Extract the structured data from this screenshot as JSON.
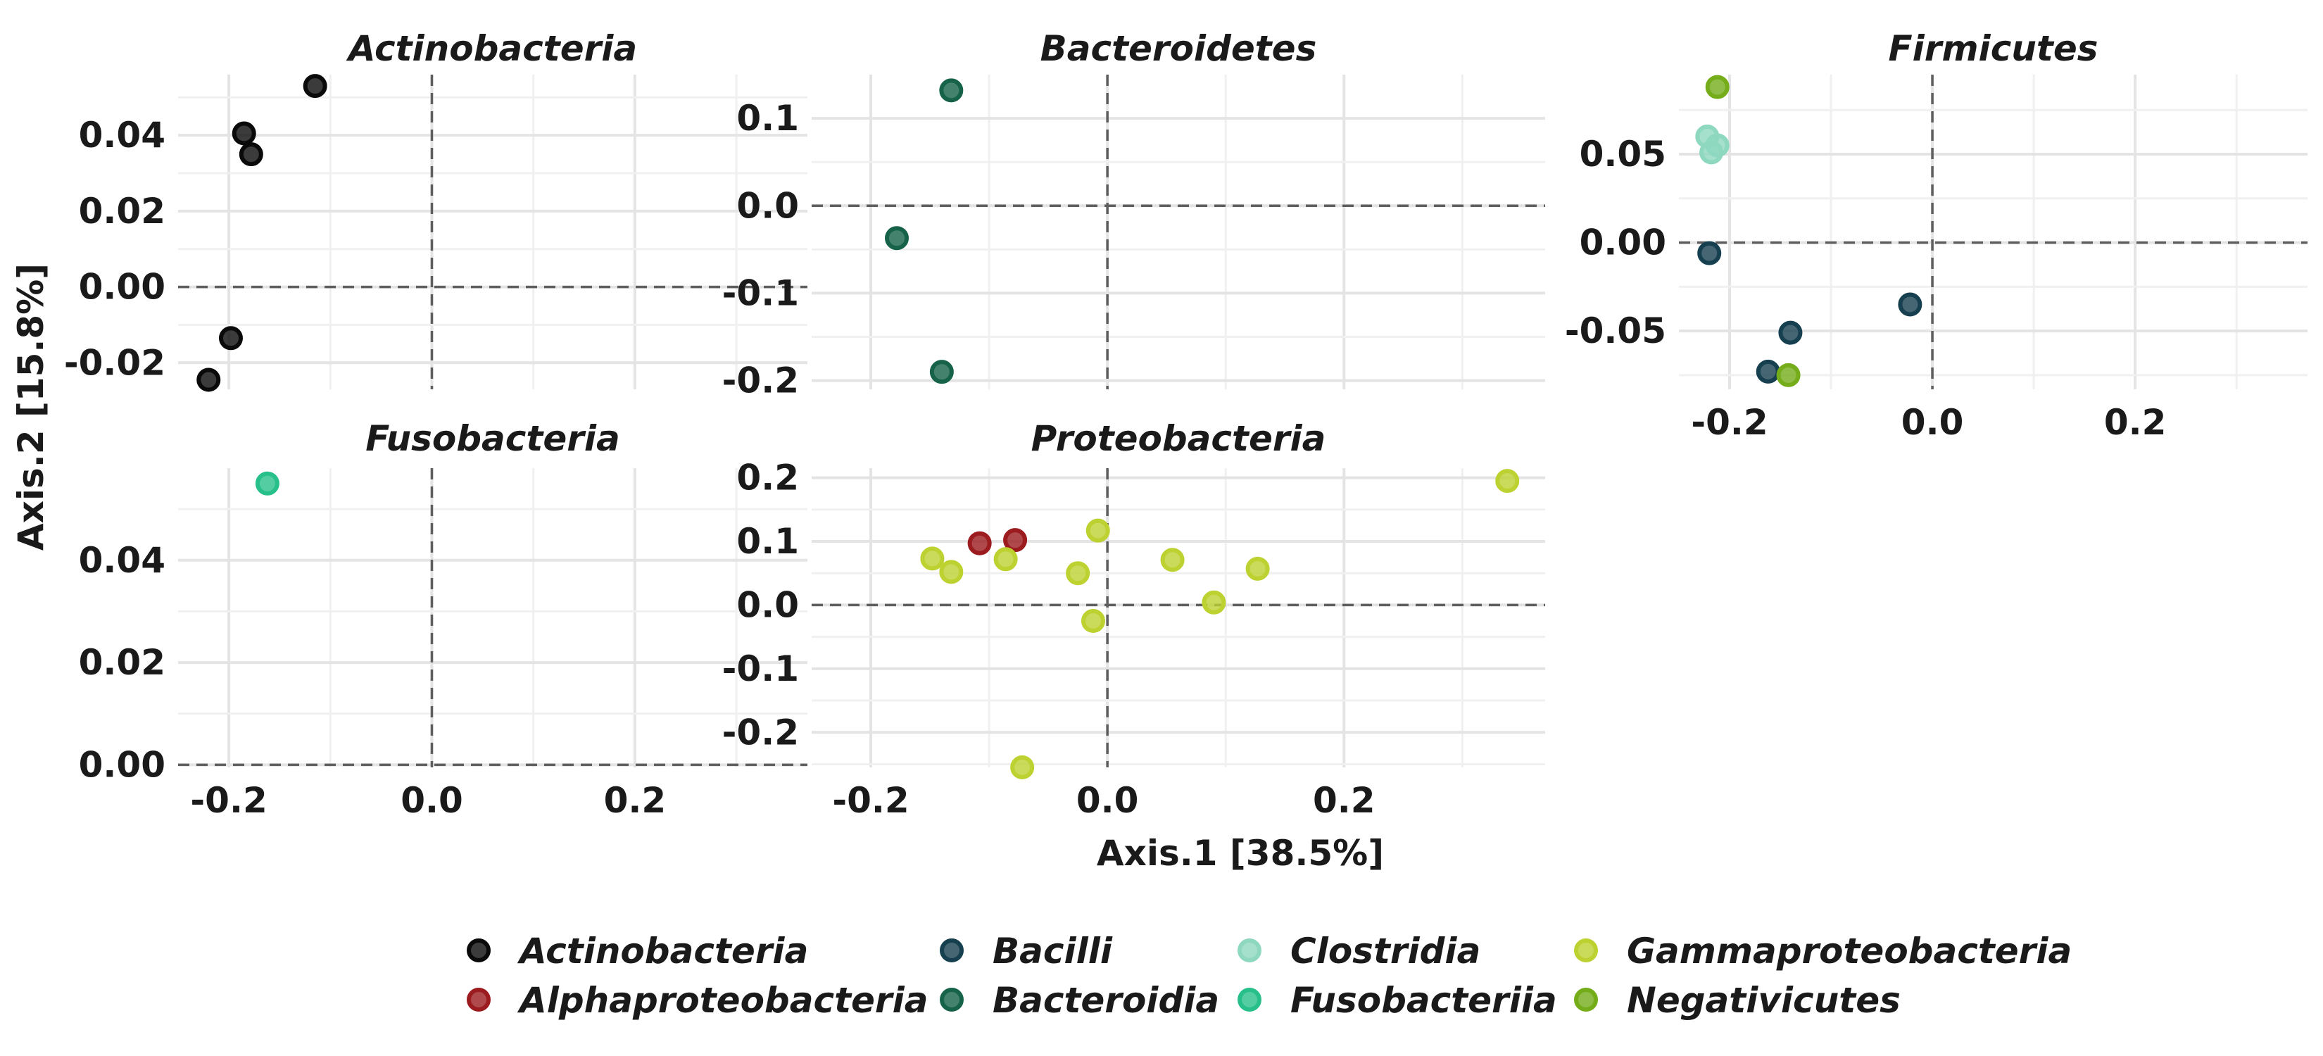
{
  "axis_titles": {
    "x": "Axis.1   [38.5%]",
    "y": "Axis.2   [15.8%]"
  },
  "colors": {
    "Actinobacteria": "#0a0a0a",
    "Alphaproteobacteria": "#9b1b1f",
    "Bacilli": "#16404f",
    "Bacteroidia": "#17634a",
    "Clostridia": "#8ed8c0",
    "Fusobacteriia": "#28c08a",
    "Gammaproteobacteria": "#bdd131",
    "Negativicutes": "#74ac1a"
  },
  "legend": {
    "entries": [
      "Actinobacteria",
      "Alphaproteobacteria",
      "Bacilli",
      "Bacteroidia",
      "Clostridia",
      "Fusobacteriia",
      "Gammaproteobacteria",
      "Negativicutes"
    ]
  },
  "chart_data": [
    {
      "type": "scatter",
      "title": "Actinobacteria",
      "xlim": [
        -0.25,
        0.37
      ],
      "ylim": [
        -0.027,
        0.056
      ],
      "xticks": [],
      "yticks": [
        -0.02,
        0.0,
        0.02,
        0.04
      ],
      "ytick_labels": [
        "-0.02",
        "0.00",
        "0.02",
        "0.04"
      ],
      "points": [
        {
          "x": -0.115,
          "y": 0.053,
          "class": "Actinobacteria"
        },
        {
          "x": -0.185,
          "y": 0.0405,
          "class": "Actinobacteria"
        },
        {
          "x": -0.178,
          "y": 0.035,
          "class": "Actinobacteria"
        },
        {
          "x": -0.198,
          "y": -0.0135,
          "class": "Actinobacteria"
        },
        {
          "x": -0.22,
          "y": -0.0245,
          "class": "Actinobacteria"
        }
      ]
    },
    {
      "type": "scatter",
      "title": "Bacteroidetes",
      "xlim": [
        -0.25,
        0.37
      ],
      "ylim": [
        -0.21,
        0.15
      ],
      "xticks": [],
      "yticks": [
        -0.2,
        -0.1,
        0.0,
        0.1
      ],
      "ytick_labels": [
        "-0.2",
        "-0.1",
        "0.0",
        "0.1"
      ],
      "points": [
        {
          "x": -0.132,
          "y": 0.132,
          "class": "Bacteroidia"
        },
        {
          "x": -0.178,
          "y": -0.037,
          "class": "Bacteroidia"
        },
        {
          "x": -0.14,
          "y": -0.19,
          "class": "Bacteroidia"
        }
      ]
    },
    {
      "type": "scatter",
      "title": "Firmicutes",
      "xlim": [
        -0.25,
        0.37
      ],
      "ylim": [
        -0.083,
        0.095
      ],
      "xticks": [
        -0.2,
        0.0,
        0.2
      ],
      "xtick_labels": [
        "-0.2",
        "0.0",
        "0.2"
      ],
      "yticks": [
        -0.05,
        0.0,
        0.05
      ],
      "ytick_labels": [
        "-0.05",
        "0.00",
        "0.05"
      ],
      "points": [
        {
          "x": -0.212,
          "y": 0.088,
          "class": "Negativicutes"
        },
        {
          "x": -0.222,
          "y": 0.06,
          "class": "Clostridia"
        },
        {
          "x": -0.212,
          "y": 0.055,
          "class": "Clostridia"
        },
        {
          "x": -0.218,
          "y": 0.051,
          "class": "Clostridia"
        },
        {
          "x": -0.22,
          "y": -0.006,
          "class": "Bacilli"
        },
        {
          "x": -0.022,
          "y": -0.035,
          "class": "Bacilli"
        },
        {
          "x": -0.14,
          "y": -0.051,
          "class": "Bacilli"
        },
        {
          "x": -0.162,
          "y": -0.073,
          "class": "Bacilli"
        },
        {
          "x": -0.142,
          "y": -0.075,
          "class": "Negativicutes"
        }
      ]
    },
    {
      "type": "scatter",
      "title": "Fusobacteria",
      "xlim": [
        -0.25,
        0.37
      ],
      "ylim": [
        -0.0005,
        0.058
      ],
      "xticks": [
        -0.2,
        0.0,
        0.2
      ],
      "xtick_labels": [
        "-0.2",
        "0.0",
        "0.2"
      ],
      "yticks": [
        0.0,
        0.02,
        0.04
      ],
      "ytick_labels": [
        "0.00",
        "0.02",
        "0.04"
      ],
      "points": [
        {
          "x": -0.162,
          "y": 0.055,
          "class": "Fusobacteriia"
        }
      ]
    },
    {
      "type": "scatter",
      "title": "Proteobacteria",
      "xlim": [
        -0.25,
        0.37
      ],
      "ylim": [
        -0.255,
        0.215
      ],
      "xticks": [
        -0.2,
        0.0,
        0.2
      ],
      "xtick_labels": [
        "-0.2",
        "0.0",
        "0.2"
      ],
      "yticks": [
        -0.2,
        -0.1,
        0.0,
        0.1,
        0.2
      ],
      "ytick_labels": [
        "-0.2",
        "-0.1",
        "0.0",
        "0.1",
        "0.2"
      ],
      "points": [
        {
          "x": 0.338,
          "y": 0.195,
          "class": "Gammaproteobacteria"
        },
        {
          "x": -0.108,
          "y": 0.097,
          "class": "Alphaproteobacteria"
        },
        {
          "x": -0.078,
          "y": 0.102,
          "class": "Alphaproteobacteria"
        },
        {
          "x": -0.008,
          "y": 0.117,
          "class": "Gammaproteobacteria"
        },
        {
          "x": -0.148,
          "y": 0.073,
          "class": "Gammaproteobacteria"
        },
        {
          "x": -0.132,
          "y": 0.052,
          "class": "Gammaproteobacteria"
        },
        {
          "x": -0.086,
          "y": 0.072,
          "class": "Gammaproteobacteria"
        },
        {
          "x": -0.025,
          "y": 0.05,
          "class": "Gammaproteobacteria"
        },
        {
          "x": 0.055,
          "y": 0.071,
          "class": "Gammaproteobacteria"
        },
        {
          "x": 0.127,
          "y": 0.057,
          "class": "Gammaproteobacteria"
        },
        {
          "x": 0.09,
          "y": 0.004,
          "class": "Gammaproteobacteria"
        },
        {
          "x": -0.012,
          "y": -0.025,
          "class": "Gammaproteobacteria"
        },
        {
          "x": -0.072,
          "y": -0.255,
          "class": "Gammaproteobacteria"
        }
      ]
    }
  ]
}
